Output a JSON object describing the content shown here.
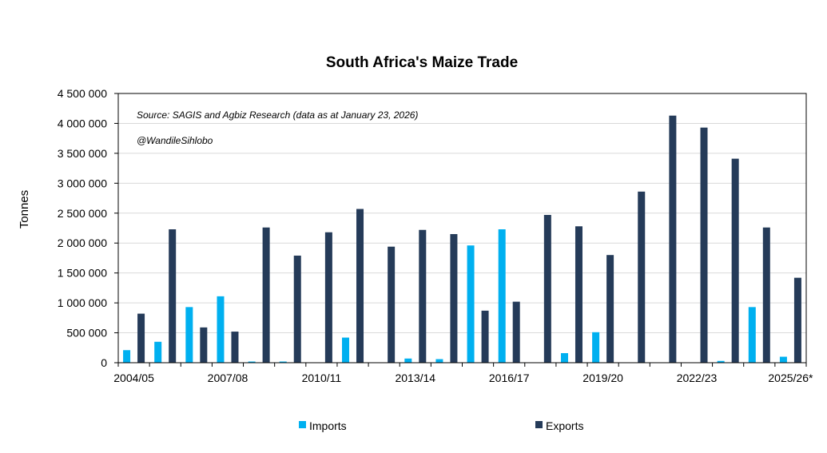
{
  "chart_data": {
    "type": "bar",
    "title": "South Africa's Maize Trade",
    "ylabel": "Tonnes",
    "xlabel": "",
    "ylim": [
      0,
      4500000
    ],
    "yticks": [
      0,
      500000,
      1000000,
      1500000,
      2000000,
      2500000,
      3000000,
      3500000,
      4000000,
      4500000
    ],
    "ytick_labels": [
      "0",
      "500 000",
      "1 000 000",
      "1 500 000",
      "2 000 000",
      "2 500 000",
      "3 000 000",
      "3 500 000",
      "4 000 000",
      "4 500 000"
    ],
    "grid": true,
    "categories": [
      "2004/05",
      "2005/06",
      "2006/07",
      "2007/08",
      "2008/09",
      "2009/10",
      "2010/11",
      "2011/12",
      "2012/13",
      "2013/14",
      "2014/15",
      "2015/16",
      "2016/17",
      "2017/18",
      "2018/19",
      "2019/20",
      "2020/21",
      "2021/22",
      "2022/23",
      "2023/24",
      "2024/25",
      "2025/26*"
    ],
    "xtick_labels": [
      "2004/05",
      "",
      "",
      "2007/08",
      "",
      "",
      "2010/11",
      "",
      "",
      "2013/14",
      "",
      "",
      "2016/17",
      "",
      "",
      "2019/20",
      "",
      "",
      "2022/23",
      "",
      "",
      "2025/26*"
    ],
    "series": [
      {
        "name": "Imports",
        "color": "#00b0f0",
        "values": [
          210000,
          350000,
          930000,
          1110000,
          20000,
          20000,
          0,
          420000,
          0,
          70000,
          60000,
          1960000,
          2230000,
          0,
          160000,
          510000,
          0,
          0,
          0,
          30000,
          930000,
          100000
        ]
      },
      {
        "name": "Exports",
        "color": "#253b59",
        "values": [
          820000,
          2230000,
          590000,
          520000,
          2260000,
          1790000,
          2180000,
          2570000,
          1940000,
          2220000,
          2150000,
          870000,
          1020000,
          2470000,
          2280000,
          1800000,
          2860000,
          4130000,
          3930000,
          3410000,
          2260000,
          1420000
        ]
      }
    ],
    "annotations": [
      "Source: SAGIS and Agbiz Research (data as at January 23, 2026)",
      "@WandileSihlobo"
    ],
    "legend_position": "bottom"
  }
}
